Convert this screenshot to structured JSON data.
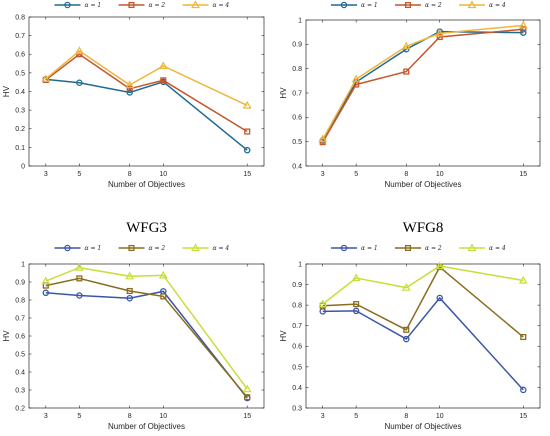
{
  "chart_data": [
    {
      "type": "line",
      "title": "",
      "xlabel": "Number of Objectives",
      "ylabel": "HV",
      "categories": [
        "3",
        "5",
        "8",
        "10",
        "15"
      ],
      "x": [
        3,
        5,
        8,
        10,
        15
      ],
      "xlim": [
        2,
        16
      ],
      "ylim": [
        0,
        0.8
      ],
      "yticks": [
        0,
        0.1,
        0.2,
        0.3,
        0.4,
        0.5,
        0.6,
        0.7,
        0.8
      ],
      "ytick_labels": [
        "0",
        "0.1",
        "0.2",
        "0.3",
        "0.4",
        "0.5",
        "0.6",
        "0.7",
        "0.8"
      ],
      "legend": "top",
      "series": [
        {
          "name": "α = 1",
          "marker": "circle",
          "color": "#1f6a93",
          "values": [
            0.465,
            0.447,
            0.395,
            0.452,
            0.085
          ]
        },
        {
          "name": "α = 2",
          "marker": "square",
          "color": "#c4562a",
          "values": [
            0.462,
            0.6,
            0.415,
            0.46,
            0.185
          ]
        },
        {
          "name": "α = 4",
          "marker": "triangle",
          "color": "#ecb73c",
          "values": [
            0.468,
            0.618,
            0.435,
            0.537,
            0.325
          ]
        }
      ]
    },
    {
      "type": "line",
      "title": "",
      "xlabel": "Number of Objectives",
      "ylabel": "HV",
      "categories": [
        "3",
        "5",
        "8",
        "10",
        "15"
      ],
      "x": [
        3,
        5,
        8,
        10,
        15
      ],
      "xlim": [
        2,
        16
      ],
      "ylim": [
        0.4,
        1
      ],
      "yticks": [
        0.4,
        0.5,
        0.6,
        0.7,
        0.8,
        0.9,
        1
      ],
      "ytick_labels": [
        "0.4",
        "0.5",
        "0.6",
        "0.7",
        "0.8",
        "0.9",
        "1"
      ],
      "legend": "top",
      "series": [
        {
          "name": "α = 1",
          "marker": "circle",
          "color": "#1f6a93",
          "values": [
            0.505,
            0.745,
            0.88,
            0.952,
            0.948
          ]
        },
        {
          "name": "α = 2",
          "marker": "square",
          "color": "#c4562a",
          "values": [
            0.498,
            0.735,
            0.788,
            0.93,
            0.962
          ]
        },
        {
          "name": "α = 4",
          "marker": "triangle",
          "color": "#ecb73c",
          "values": [
            0.51,
            0.757,
            0.892,
            0.945,
            0.978
          ]
        }
      ]
    },
    {
      "type": "line",
      "title": "WFG3",
      "xlabel": "Number of Objectives",
      "ylabel": "HV",
      "categories": [
        "3",
        "5",
        "8",
        "10",
        "15"
      ],
      "x": [
        3,
        5,
        8,
        10,
        15
      ],
      "xlim": [
        2,
        16
      ],
      "ylim": [
        0.2,
        1
      ],
      "yticks": [
        0.2,
        0.3,
        0.4,
        0.5,
        0.6,
        0.7,
        0.8,
        0.9,
        1
      ],
      "ytick_labels": [
        "0.2",
        "0.3",
        "0.4",
        "0.5",
        "0.6",
        "0.7",
        "0.8",
        "0.9",
        "1"
      ],
      "legend": "top",
      "series": [
        {
          "name": "α = 1",
          "marker": "circle",
          "color": "#3a56a8",
          "values": [
            0.84,
            0.825,
            0.81,
            0.848,
            0.255
          ]
        },
        {
          "name": "α = 2",
          "marker": "square",
          "color": "#8a6d1f",
          "values": [
            0.88,
            0.92,
            0.85,
            0.82,
            0.26
          ]
        },
        {
          "name": "α = 4",
          "marker": "triangle",
          "color": "#c8de38",
          "values": [
            0.905,
            0.98,
            0.932,
            0.937,
            0.305
          ]
        }
      ]
    },
    {
      "type": "line",
      "title": "WFG8",
      "xlabel": "Number of Objectives",
      "ylabel": "HV",
      "categories": [
        "3",
        "5",
        "8",
        "10",
        "15"
      ],
      "x": [
        3,
        5,
        8,
        10,
        15
      ],
      "xlim": [
        2,
        16
      ],
      "ylim": [
        0.3,
        1
      ],
      "yticks": [
        0.3,
        0.4,
        0.5,
        0.6,
        0.7,
        0.8,
        0.9,
        1
      ],
      "ytick_labels": [
        "0.3",
        "0.4",
        "0.5",
        "0.6",
        "0.7",
        "0.8",
        "0.9",
        "1"
      ],
      "legend": "top",
      "series": [
        {
          "name": "α = 1",
          "marker": "circle",
          "color": "#3a56a8",
          "values": [
            0.77,
            0.772,
            0.635,
            0.835,
            0.388
          ]
        },
        {
          "name": "α = 2",
          "marker": "square",
          "color": "#8a6d1f",
          "values": [
            0.797,
            0.805,
            0.68,
            0.985,
            0.645
          ]
        },
        {
          "name": "α = 4",
          "marker": "triangle",
          "color": "#c8de38",
          "values": [
            0.805,
            0.932,
            0.885,
            0.99,
            0.92
          ]
        }
      ]
    }
  ]
}
